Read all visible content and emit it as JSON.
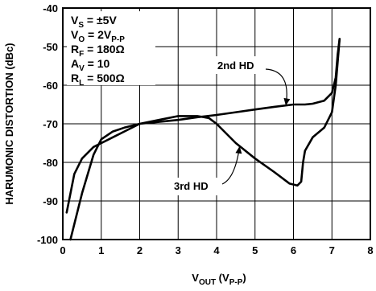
{
  "chart_data": {
    "type": "line",
    "xlabel": {
      "main": "V",
      "sub": "OUT",
      "paren_main": " (V",
      "paren_sub": "P-P",
      "close": ")"
    },
    "ylabel": "HARUMONIC DISTORTION (dBc)",
    "xlim": [
      0,
      8
    ],
    "ylim": [
      -100,
      -40
    ],
    "xticks": [
      "0",
      "1",
      "2",
      "3",
      "4",
      "5",
      "6",
      "7",
      "8"
    ],
    "yticks": [
      "-40",
      "-50",
      "-60",
      "-70",
      "-80",
      "-90",
      "-100"
    ],
    "grid": true,
    "conditions": [
      {
        "main": "V",
        "sub": "S",
        "rest": " = ±5V"
      },
      {
        "main": "V",
        "sub": "O",
        "rest": " = 2V",
        "sub2": "P-P"
      },
      {
        "main": "R",
        "sub": "F",
        "rest": " = 180Ω"
      },
      {
        "main": "A",
        "sub": "V",
        "rest": " = 10"
      },
      {
        "main": "R",
        "sub": "L",
        "rest": " = 500Ω"
      }
    ],
    "series": [
      {
        "name": "2nd HD",
        "points": [
          [
            0.2,
            -100
          ],
          [
            0.5,
            -88
          ],
          [
            0.8,
            -78
          ],
          [
            1.0,
            -74
          ],
          [
            1.3,
            -72
          ],
          [
            1.6,
            -71
          ],
          [
            2.0,
            -70
          ],
          [
            2.5,
            -69.5
          ],
          [
            3.0,
            -69
          ],
          [
            3.5,
            -68.3
          ],
          [
            4.0,
            -67.7
          ],
          [
            4.5,
            -67
          ],
          [
            5.0,
            -66.3
          ],
          [
            5.5,
            -65.6
          ],
          [
            6.0,
            -65
          ],
          [
            6.3,
            -65
          ],
          [
            6.5,
            -64.8
          ],
          [
            6.8,
            -64
          ],
          [
            7.0,
            -62
          ],
          [
            7.1,
            -58
          ],
          [
            7.15,
            -52
          ],
          [
            7.2,
            -48
          ]
        ]
      },
      {
        "name": "3rd HD",
        "points": [
          [
            0.1,
            -93
          ],
          [
            0.3,
            -83
          ],
          [
            0.5,
            -79
          ],
          [
            0.8,
            -76
          ],
          [
            1.0,
            -75
          ],
          [
            1.3,
            -73.5
          ],
          [
            1.6,
            -72
          ],
          [
            2.0,
            -70
          ],
          [
            2.5,
            -69
          ],
          [
            3.0,
            -68
          ],
          [
            3.5,
            -68
          ],
          [
            3.8,
            -68.5
          ],
          [
            4.0,
            -70
          ],
          [
            4.5,
            -75
          ],
          [
            5.0,
            -79
          ],
          [
            5.5,
            -82.5
          ],
          [
            5.9,
            -85.5
          ],
          [
            6.1,
            -86
          ],
          [
            6.2,
            -85
          ],
          [
            6.25,
            -80
          ],
          [
            6.3,
            -77
          ],
          [
            6.5,
            -73.5
          ],
          [
            6.8,
            -71
          ],
          [
            7.0,
            -67
          ],
          [
            7.1,
            -60
          ],
          [
            7.2,
            -48
          ]
        ]
      }
    ],
    "annotations": [
      {
        "text": "2nd HD",
        "target_series": "2nd HD"
      },
      {
        "text": "3rd HD",
        "target_series": "3rd HD"
      }
    ]
  }
}
